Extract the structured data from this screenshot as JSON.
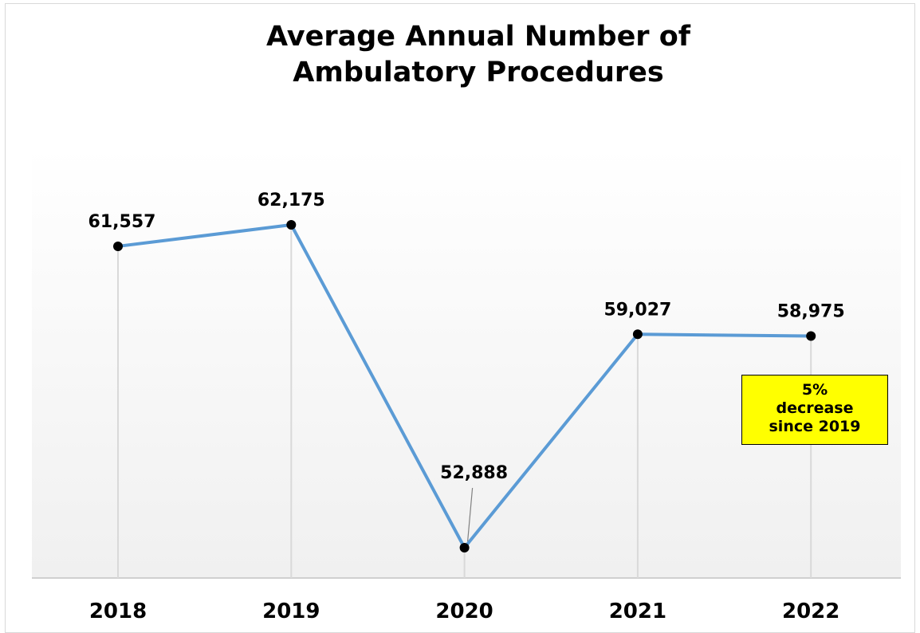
{
  "chart_data": {
    "type": "line",
    "title_lines": [
      "Average Annual Number of",
      "Ambulatory Procedures"
    ],
    "categories": [
      "2018",
      "2019",
      "2020",
      "2021",
      "2022"
    ],
    "values": [
      61557,
      62175,
      52888,
      59027,
      58975
    ],
    "data_labels": [
      "61,557",
      "62,175",
      "52,888",
      "59,027",
      "58,975"
    ],
    "series": [
      {
        "values": [
          61557,
          62175,
          52888,
          59027,
          58975
        ]
      }
    ],
    "ylim": [
      52000,
      65000
    ],
    "grid": "vertical drop lines",
    "legend": "none",
    "annotation_lines": [
      "5%",
      "decrease",
      "since 2019"
    ],
    "colors": {
      "line": "#5b9bd5",
      "marker": "#000000",
      "callout_bg": "#ffff00",
      "dropline": "#d9d9d9"
    }
  }
}
